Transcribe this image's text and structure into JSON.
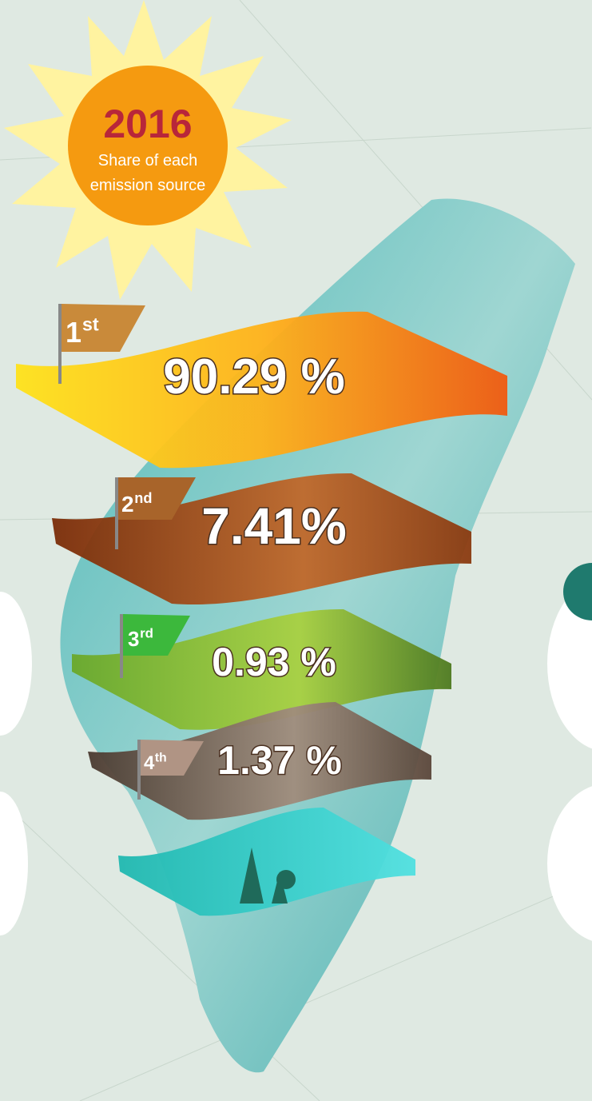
{
  "header": {
    "year": "2016",
    "subtitle_lines": [
      "Share of each",
      "emission source"
    ]
  },
  "layers": [
    {
      "rank": "1",
      "suffix": "st",
      "value": "90.29 %"
    },
    {
      "rank": "2",
      "suffix": "nd",
      "value": "7.41%"
    },
    {
      "rank": "3",
      "suffix": "rd",
      "value": "0.93 %"
    },
    {
      "rank": "4",
      "suffix": "th",
      "value": "1.37 %"
    }
  ]
}
